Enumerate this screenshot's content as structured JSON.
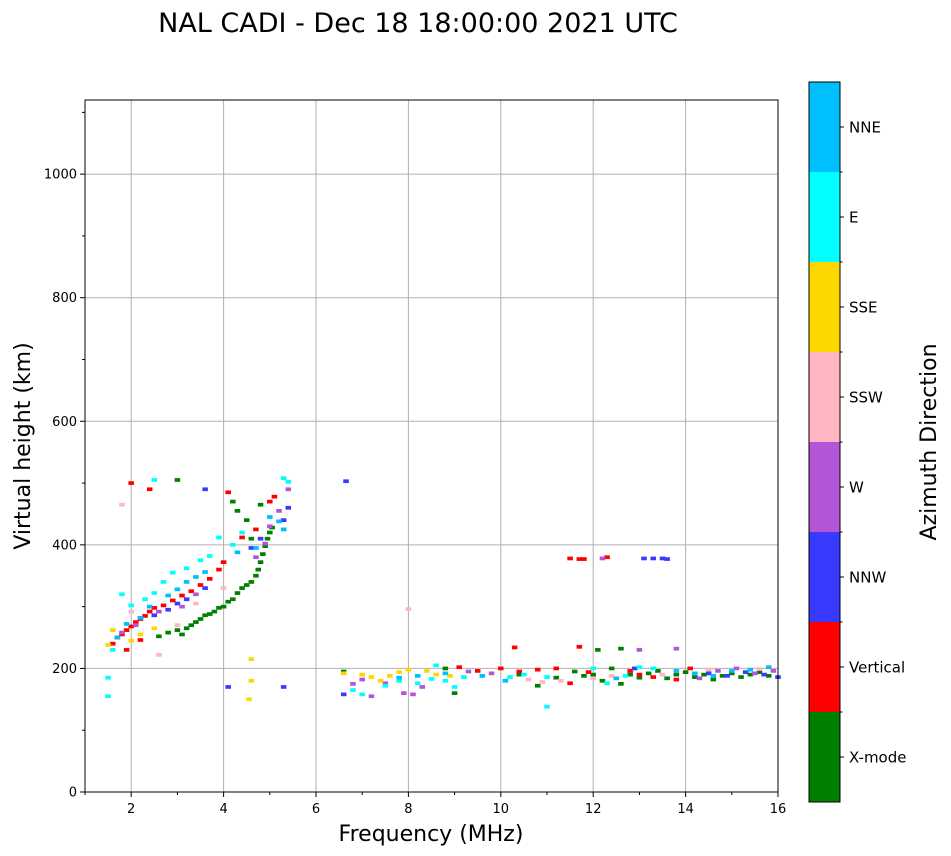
{
  "chart_data": {
    "type": "scatter",
    "title": "NAL CADI - Dec 18 18:00:00 2021 UTC",
    "xlabel": "Frequency (MHz)",
    "ylabel": "Virtual height (km)",
    "xlim": [
      1,
      16
    ],
    "ylim": [
      0,
      1120
    ],
    "xticks": [
      2,
      4,
      6,
      8,
      10,
      12,
      14,
      16
    ],
    "xtick_labels": [
      "2",
      "4",
      "6",
      "8",
      "10",
      "12",
      "14",
      "16"
    ],
    "yticks": [
      0,
      200,
      400,
      600,
      800,
      1000
    ],
    "ytick_labels": [
      "0",
      "200",
      "400",
      "600",
      "800",
      "1000"
    ],
    "grid": true,
    "colorbar": {
      "title": "Azimuth Direction",
      "categories": [
        {
          "label": "X-mode",
          "color": "#008000"
        },
        {
          "label": "Vertical",
          "color": "#ff0000"
        },
        {
          "label": "NNW",
          "color": "#3a3aff"
        },
        {
          "label": "W",
          "color": "#b355d6"
        },
        {
          "label": "SSW",
          "color": "#ffb6c1"
        },
        {
          "label": "SSE",
          "color": "#ffd700"
        },
        {
          "label": "E",
          "color": "#00ffff"
        },
        {
          "label": "NNE",
          "color": "#00bfff"
        }
      ]
    },
    "series": [
      {
        "name": "X-mode",
        "points": [
          [
            2.6,
            252
          ],
          [
            2.8,
            258
          ],
          [
            3.0,
            262
          ],
          [
            3.1,
            255
          ],
          [
            3.2,
            265
          ],
          [
            3.3,
            270
          ],
          [
            3.4,
            275
          ],
          [
            3.5,
            280
          ],
          [
            3.6,
            286
          ],
          [
            3.7,
            288
          ],
          [
            3.8,
            292
          ],
          [
            3.9,
            298
          ],
          [
            4.0,
            300
          ],
          [
            4.1,
            308
          ],
          [
            4.2,
            312
          ],
          [
            4.3,
            322
          ],
          [
            4.4,
            330
          ],
          [
            4.5,
            335
          ],
          [
            4.6,
            340
          ],
          [
            4.7,
            350
          ],
          [
            4.75,
            360
          ],
          [
            4.8,
            372
          ],
          [
            4.85,
            385
          ],
          [
            4.9,
            398
          ],
          [
            4.95,
            410
          ],
          [
            5.0,
            420
          ],
          [
            5.05,
            428
          ],
          [
            4.6,
            410
          ],
          [
            4.5,
            440
          ],
          [
            4.3,
            455
          ],
          [
            4.2,
            470
          ],
          [
            4.8,
            465
          ],
          [
            3.0,
            505
          ],
          [
            6.6,
            195
          ],
          [
            8.8,
            200
          ],
          [
            9.0,
            160
          ],
          [
            10.8,
            172
          ],
          [
            11.2,
            185
          ],
          [
            11.8,
            188
          ],
          [
            12.0,
            190
          ],
          [
            12.2,
            180
          ],
          [
            12.4,
            200
          ],
          [
            12.6,
            175
          ],
          [
            12.8,
            190
          ],
          [
            13.0,
            185
          ],
          [
            13.2,
            192
          ],
          [
            13.4,
            196
          ],
          [
            13.6,
            184
          ],
          [
            13.8,
            190
          ],
          [
            14.0,
            194
          ],
          [
            14.2,
            186
          ],
          [
            14.4,
            190
          ],
          [
            14.6,
            182
          ],
          [
            14.8,
            188
          ],
          [
            15.0,
            192
          ],
          [
            15.2,
            186
          ],
          [
            15.4,
            190
          ],
          [
            15.6,
            194
          ],
          [
            15.8,
            188
          ],
          [
            12.6,
            232
          ],
          [
            12.1,
            230
          ],
          [
            11.6,
            195
          ],
          [
            10.4,
            190
          ]
        ]
      },
      {
        "name": "Vertical",
        "points": [
          [
            1.6,
            240
          ],
          [
            1.7,
            250
          ],
          [
            1.8,
            255
          ],
          [
            1.9,
            262
          ],
          [
            2.0,
            268
          ],
          [
            2.1,
            275
          ],
          [
            2.2,
            280
          ],
          [
            2.3,
            285
          ],
          [
            2.4,
            292
          ],
          [
            2.5,
            298
          ],
          [
            2.7,
            302
          ],
          [
            2.9,
            310
          ],
          [
            3.1,
            318
          ],
          [
            3.3,
            325
          ],
          [
            3.5,
            335
          ],
          [
            3.7,
            345
          ],
          [
            3.9,
            360
          ],
          [
            4.0,
            372
          ],
          [
            4.4,
            412
          ],
          [
            4.7,
            425
          ],
          [
            5.0,
            470
          ],
          [
            5.1,
            478
          ],
          [
            4.1,
            485
          ],
          [
            2.4,
            490
          ],
          [
            2.0,
            500
          ],
          [
            1.9,
            230
          ],
          [
            2.2,
            246
          ],
          [
            11.5,
            378
          ],
          [
            11.7,
            377
          ],
          [
            11.8,
            377
          ],
          [
            12.3,
            380
          ],
          [
            11.7,
            235
          ],
          [
            10.3,
            234
          ],
          [
            10.0,
            200
          ],
          [
            10.4,
            195
          ],
          [
            10.8,
            198
          ],
          [
            11.2,
            200
          ],
          [
            11.5,
            176
          ],
          [
            11.9,
            194
          ],
          [
            12.8,
            196
          ],
          [
            13.0,
            190
          ],
          [
            13.3,
            186
          ],
          [
            13.8,
            182
          ],
          [
            14.1,
            200
          ],
          [
            9.1,
            202
          ],
          [
            9.5,
            196
          ]
        ]
      },
      {
        "name": "NNW",
        "points": [
          [
            2.5,
            286
          ],
          [
            2.8,
            295
          ],
          [
            3.0,
            305
          ],
          [
            3.2,
            312
          ],
          [
            3.6,
            330
          ],
          [
            4.6,
            395
          ],
          [
            4.8,
            410
          ],
          [
            5.3,
            440
          ],
          [
            5.4,
            460
          ],
          [
            6.65,
            503
          ],
          [
            3.6,
            490
          ],
          [
            4.1,
            170
          ],
          [
            5.3,
            170
          ],
          [
            13.1,
            378
          ],
          [
            13.3,
            378
          ],
          [
            13.5,
            378
          ],
          [
            13.6,
            377
          ],
          [
            6.6,
            158
          ],
          [
            14.5,
            192
          ],
          [
            14.9,
            188
          ],
          [
            15.3,
            194
          ],
          [
            15.7,
            190
          ],
          [
            16.0,
            186
          ],
          [
            12.9,
            200
          ]
        ]
      },
      {
        "name": "W",
        "points": [
          [
            1.8,
            258
          ],
          [
            2.1,
            270
          ],
          [
            2.6,
            292
          ],
          [
            3.1,
            300
          ],
          [
            3.4,
            320
          ],
          [
            4.7,
            380
          ],
          [
            4.9,
            402
          ],
          [
            5.0,
            430
          ],
          [
            5.2,
            455
          ],
          [
            5.4,
            490
          ],
          [
            6.8,
            175
          ],
          [
            7.0,
            182
          ],
          [
            7.2,
            155
          ],
          [
            7.5,
            176
          ],
          [
            7.9,
            160
          ],
          [
            8.1,
            158
          ],
          [
            8.3,
            170
          ],
          [
            9.3,
            195
          ],
          [
            9.8,
            192
          ],
          [
            12.2,
            378
          ],
          [
            13.0,
            230
          ],
          [
            13.8,
            232
          ],
          [
            14.3,
            184
          ],
          [
            14.7,
            196
          ],
          [
            15.1,
            200
          ],
          [
            15.5,
            192
          ],
          [
            15.9,
            196
          ]
        ]
      },
      {
        "name": "SSW",
        "points": [
          [
            2.0,
            292
          ],
          [
            2.6,
            222
          ],
          [
            3.0,
            270
          ],
          [
            3.4,
            305
          ],
          [
            4.0,
            330
          ],
          [
            8.0,
            296
          ],
          [
            1.8,
            465
          ],
          [
            10.6,
            182
          ],
          [
            10.9,
            178
          ],
          [
            11.3,
            180
          ],
          [
            12.0,
            184
          ],
          [
            12.4,
            188
          ],
          [
            14.5,
            198
          ],
          [
            15.6,
            199
          ],
          [
            13.5,
            190
          ]
        ]
      },
      {
        "name": "SSE",
        "points": [
          [
            1.5,
            238
          ],
          [
            1.6,
            262
          ],
          [
            2.0,
            245
          ],
          [
            2.2,
            255
          ],
          [
            2.5,
            265
          ],
          [
            4.6,
            215
          ],
          [
            4.6,
            180
          ],
          [
            4.55,
            150
          ],
          [
            6.6,
            192
          ],
          [
            7.0,
            190
          ],
          [
            7.2,
            186
          ],
          [
            7.6,
            188
          ],
          [
            7.8,
            194
          ],
          [
            8.0,
            198
          ],
          [
            8.4,
            196
          ],
          [
            8.6,
            190
          ],
          [
            8.9,
            188
          ],
          [
            9.2,
            186
          ],
          [
            7.4,
            180
          ]
        ]
      },
      {
        "name": "E",
        "points": [
          [
            1.6,
            230
          ],
          [
            1.8,
            320
          ],
          [
            2.0,
            302
          ],
          [
            2.3,
            312
          ],
          [
            2.5,
            322
          ],
          [
            2.7,
            340
          ],
          [
            2.9,
            355
          ],
          [
            3.2,
            362
          ],
          [
            3.5,
            375
          ],
          [
            3.7,
            382
          ],
          [
            3.9,
            412
          ],
          [
            4.2,
            400
          ],
          [
            4.4,
            420
          ],
          [
            5.3,
            508
          ],
          [
            5.4,
            502
          ],
          [
            1.5,
            185
          ],
          [
            2.5,
            505
          ],
          [
            7.5,
            172
          ],
          [
            7.8,
            180
          ],
          [
            8.2,
            176
          ],
          [
            8.5,
            183
          ],
          [
            8.8,
            180
          ],
          [
            9.0,
            170
          ],
          [
            9.2,
            186
          ],
          [
            10.2,
            186
          ],
          [
            10.5,
            190
          ],
          [
            11.0,
            138
          ],
          [
            11.0,
            186
          ],
          [
            12.0,
            200
          ],
          [
            12.3,
            176
          ],
          [
            12.7,
            188
          ],
          [
            13.0,
            202
          ],
          [
            13.3,
            200
          ],
          [
            6.8,
            165
          ],
          [
            7.0,
            158
          ],
          [
            1.5,
            155
          ],
          [
            8.6,
            205
          ]
        ]
      },
      {
        "name": "NNE",
        "points": [
          [
            1.7,
            250
          ],
          [
            1.9,
            272
          ],
          [
            2.2,
            282
          ],
          [
            2.4,
            300
          ],
          [
            2.8,
            318
          ],
          [
            3.0,
            328
          ],
          [
            3.2,
            340
          ],
          [
            3.4,
            348
          ],
          [
            3.6,
            356
          ],
          [
            4.3,
            388
          ],
          [
            4.7,
            395
          ],
          [
            5.0,
            445
          ],
          [
            5.2,
            438
          ],
          [
            5.3,
            425
          ],
          [
            7.8,
            185
          ],
          [
            8.2,
            188
          ],
          [
            8.8,
            192
          ],
          [
            9.6,
            188
          ],
          [
            10.1,
            180
          ],
          [
            12.5,
            184
          ],
          [
            13.8,
            196
          ],
          [
            14.2,
            192
          ],
          [
            14.6,
            188
          ],
          [
            15.0,
            196
          ],
          [
            15.4,
            198
          ],
          [
            15.8,
            202
          ]
        ]
      }
    ]
  }
}
